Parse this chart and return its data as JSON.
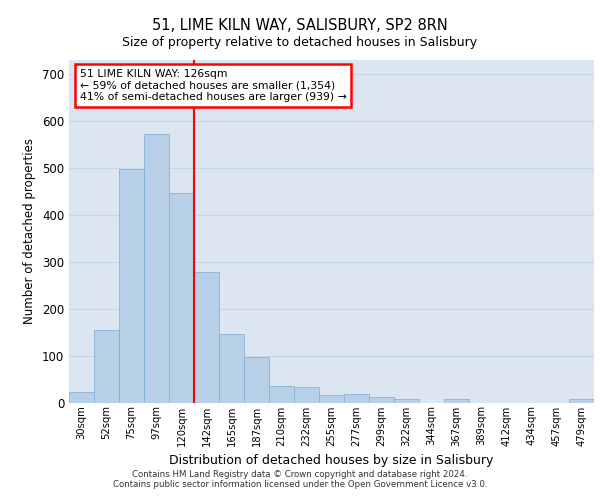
{
  "title1": "51, LIME KILN WAY, SALISBURY, SP2 8RN",
  "title2": "Size of property relative to detached houses in Salisbury",
  "xlabel": "Distribution of detached houses by size in Salisbury",
  "ylabel": "Number of detached properties",
  "categories": [
    "30sqm",
    "52sqm",
    "75sqm",
    "97sqm",
    "120sqm",
    "142sqm",
    "165sqm",
    "187sqm",
    "210sqm",
    "232sqm",
    "255sqm",
    "277sqm",
    "299sqm",
    "322sqm",
    "344sqm",
    "367sqm",
    "389sqm",
    "412sqm",
    "434sqm",
    "457sqm",
    "479sqm"
  ],
  "values": [
    22,
    155,
    497,
    573,
    447,
    278,
    145,
    98,
    35,
    32,
    15,
    18,
    12,
    8,
    0,
    8,
    0,
    0,
    0,
    0,
    7
  ],
  "bar_color": "#b8cfe8",
  "bar_edge_color": "#7aadd4",
  "grid_color": "#c8d4e8",
  "background_color": "#dce6f0",
  "vline_color": "red",
  "annotation_text": "51 LIME KILN WAY: 126sqm\n← 59% of detached houses are smaller (1,354)\n41% of semi-detached houses are larger (939) →",
  "annotation_box_color": "white",
  "annotation_box_edge_color": "red",
  "ylim": [
    0,
    730
  ],
  "yticks": [
    0,
    100,
    200,
    300,
    400,
    500,
    600,
    700
  ],
  "footer_line1": "Contains HM Land Registry data © Crown copyright and database right 2024.",
  "footer_line2": "Contains public sector information licensed under the Open Government Licence v3.0."
}
